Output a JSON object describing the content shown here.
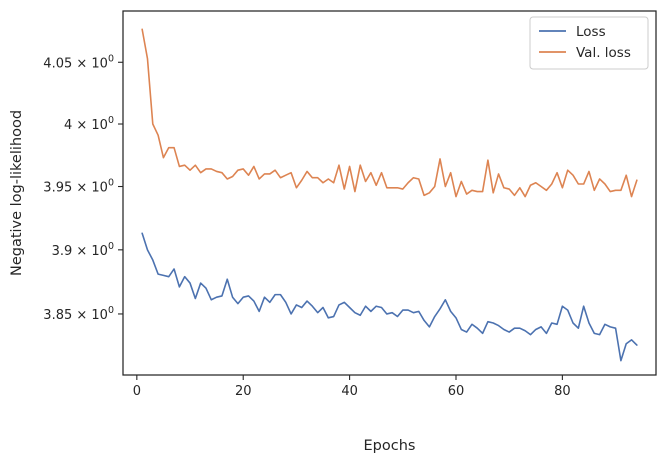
{
  "chart_data": {
    "type": "line",
    "title": "",
    "xlabel": "Epochs",
    "ylabel": "Negative log-likelihood",
    "xlim": [
      -2.6,
      97.6
    ],
    "ylim": [
      3.803,
      4.092
    ],
    "yscale": "log",
    "x_ticks": [
      0,
      20,
      40,
      60,
      80
    ],
    "y_ticks": [
      {
        "value": 3.85,
        "mantissa": "3.85",
        "base": "10",
        "exp": "0"
      },
      {
        "value": 3.9,
        "mantissa": "3.9",
        "base": "10",
        "exp": "0"
      },
      {
        "value": 3.95,
        "mantissa": "3.95",
        "base": "10",
        "exp": "0"
      },
      {
        "value": 4.0,
        "mantissa": "4",
        "base": "10",
        "exp": "0"
      },
      {
        "value": 4.05,
        "mantissa": "4.05",
        "base": "10",
        "exp": "0"
      }
    ],
    "times_sign": "×",
    "legend_position": "top-right",
    "grid": false,
    "x": [
      1,
      2,
      3,
      4,
      5,
      6,
      7,
      8,
      9,
      10,
      11,
      12,
      13,
      14,
      15,
      16,
      17,
      18,
      19,
      20,
      21,
      22,
      23,
      24,
      25,
      26,
      27,
      28,
      29,
      30,
      31,
      32,
      33,
      34,
      35,
      36,
      37,
      38,
      39,
      40,
      41,
      42,
      43,
      44,
      45,
      46,
      47,
      48,
      49,
      50,
      51,
      52,
      53,
      54,
      55,
      56,
      57,
      58,
      59,
      60,
      61,
      62,
      63,
      64,
      65,
      66,
      67,
      68,
      69,
      70,
      71,
      72,
      73,
      74,
      75,
      76,
      77,
      78,
      79,
      80,
      81,
      82,
      83,
      84,
      85,
      86,
      87,
      88,
      89,
      90,
      91,
      92,
      93,
      94
    ],
    "series": [
      {
        "name": "Loss",
        "color": "#4c72b0",
        "values": [
          3.913,
          3.9,
          3.892,
          3.881,
          3.88,
          3.879,
          3.885,
          3.871,
          3.879,
          3.874,
          3.862,
          3.874,
          3.87,
          3.861,
          3.863,
          3.864,
          3.877,
          3.863,
          3.858,
          3.863,
          3.864,
          3.86,
          3.852,
          3.863,
          3.859,
          3.865,
          3.865,
          3.859,
          3.85,
          3.857,
          3.855,
          3.86,
          3.856,
          3.851,
          3.855,
          3.847,
          3.848,
          3.857,
          3.859,
          3.855,
          3.851,
          3.849,
          3.856,
          3.852,
          3.856,
          3.855,
          3.85,
          3.851,
          3.848,
          3.853,
          3.853,
          3.851,
          3.852,
          3.845,
          3.84,
          3.848,
          3.854,
          3.861,
          3.852,
          3.847,
          3.838,
          3.836,
          3.842,
          3.839,
          3.835,
          3.844,
          3.843,
          3.841,
          3.838,
          3.836,
          3.839,
          3.839,
          3.837,
          3.834,
          3.838,
          3.84,
          3.835,
          3.843,
          3.842,
          3.856,
          3.853,
          3.843,
          3.839,
          3.856,
          3.843,
          3.835,
          3.834,
          3.842,
          3.84,
          3.839,
          3.814,
          3.827,
          3.83,
          3.826
        ]
      },
      {
        "name": "Val. loss",
        "color": "#dd8452",
        "values": [
          4.077,
          4.053,
          4.0,
          3.991,
          3.973,
          3.981,
          3.981,
          3.966,
          3.967,
          3.963,
          3.967,
          3.961,
          3.964,
          3.964,
          3.962,
          3.961,
          3.956,
          3.958,
          3.963,
          3.964,
          3.959,
          3.966,
          3.956,
          3.96,
          3.96,
          3.963,
          3.957,
          3.959,
          3.961,
          3.949,
          3.955,
          3.962,
          3.957,
          3.957,
          3.953,
          3.956,
          3.953,
          3.967,
          3.948,
          3.966,
          3.946,
          3.967,
          3.954,
          3.961,
          3.951,
          3.961,
          3.949,
          3.949,
          3.949,
          3.948,
          3.953,
          3.957,
          3.956,
          3.943,
          3.945,
          3.95,
          3.972,
          3.95,
          3.961,
          3.942,
          3.954,
          3.944,
          3.947,
          3.946,
          3.946,
          3.971,
          3.945,
          3.96,
          3.949,
          3.948,
          3.943,
          3.949,
          3.942,
          3.951,
          3.953,
          3.95,
          3.947,
          3.952,
          3.961,
          3.949,
          3.963,
          3.959,
          3.952,
          3.952,
          3.962,
          3.947,
          3.956,
          3.952,
          3.946,
          3.947,
          3.947,
          3.959,
          3.942,
          3.955
        ]
      }
    ]
  }
}
